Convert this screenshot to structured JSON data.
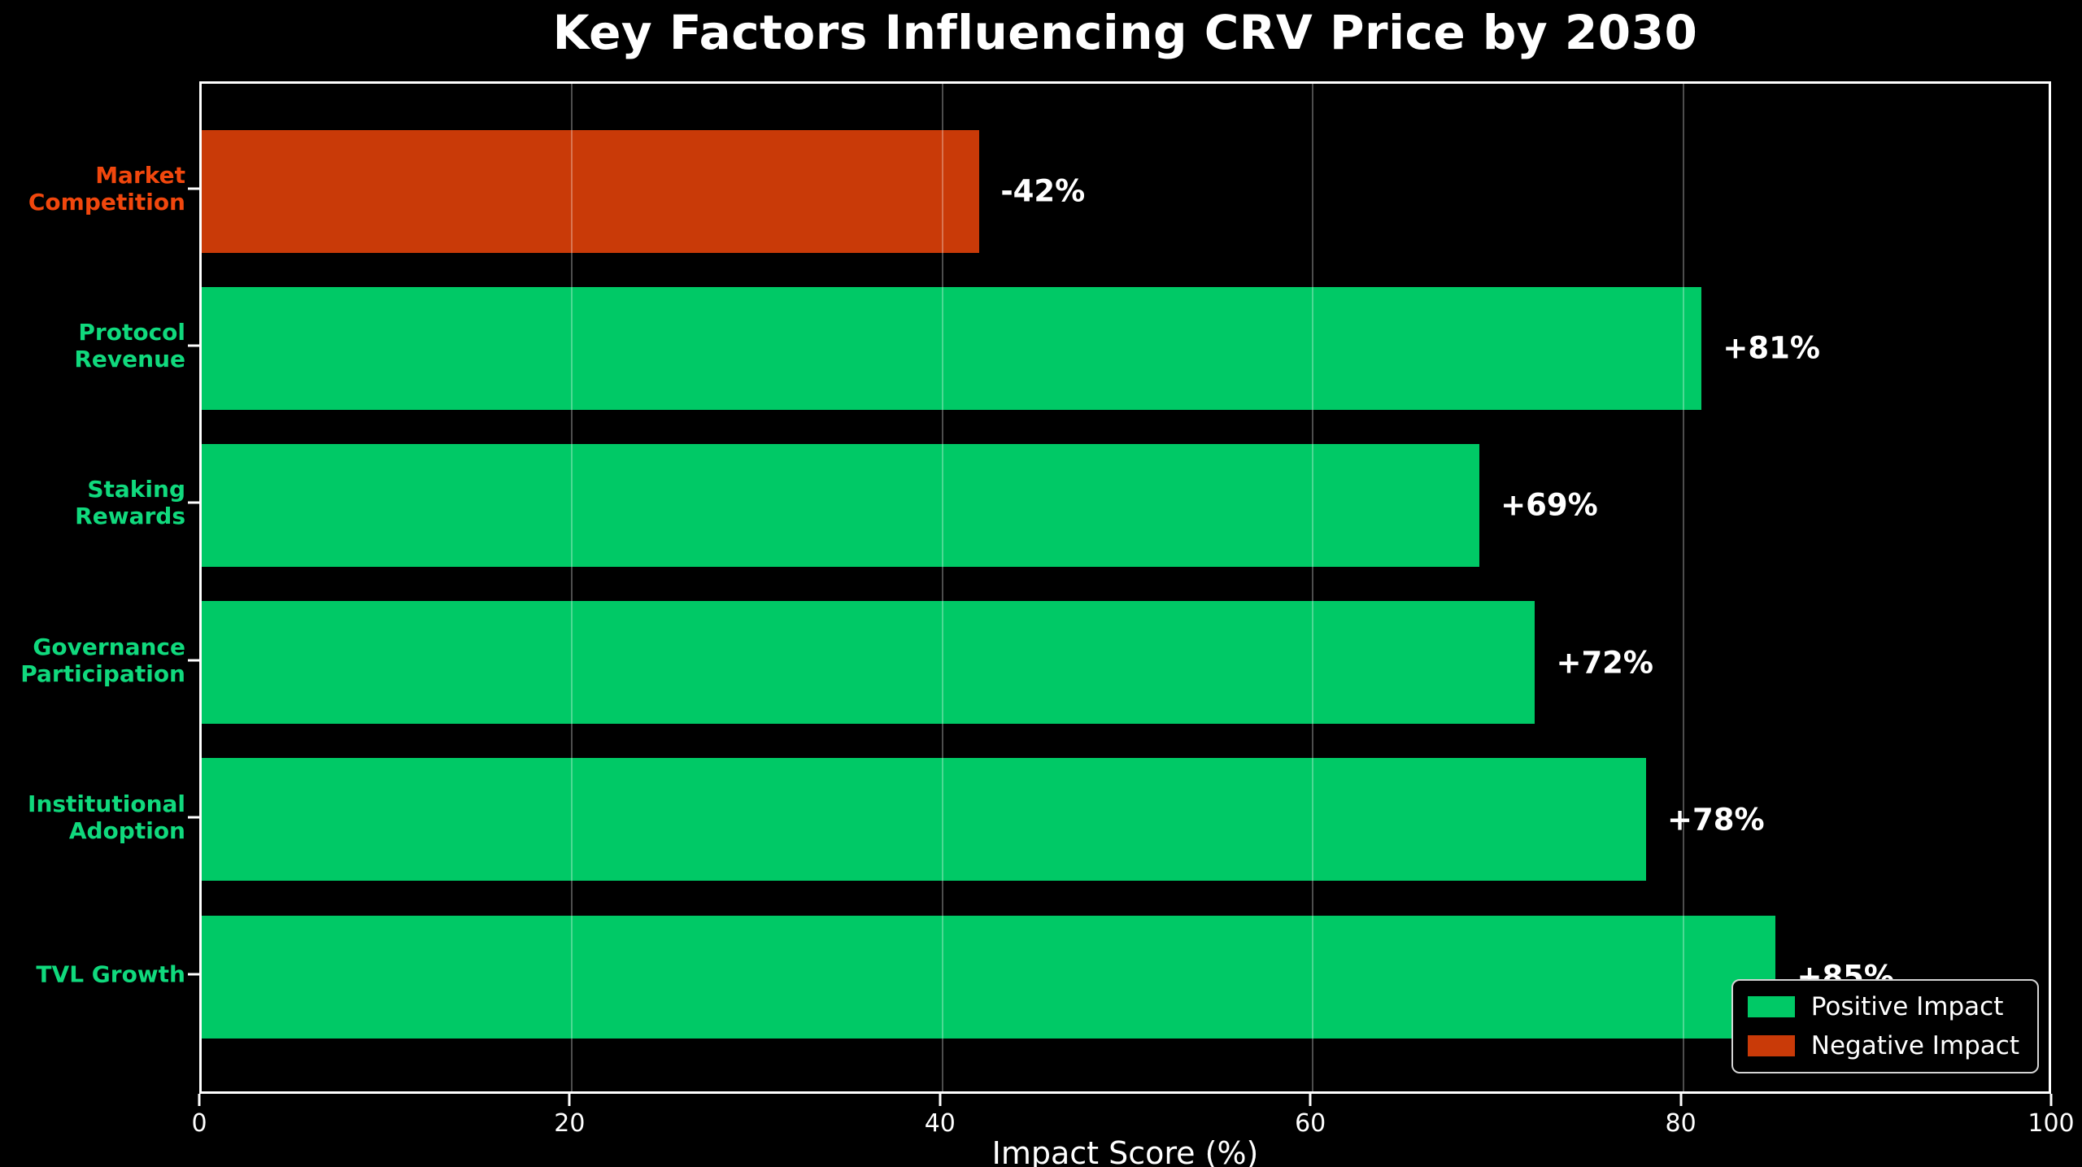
{
  "title": "Key Factors Influencing CRV Price by 2030",
  "chart_data": {
    "type": "bar",
    "orientation": "horizontal",
    "title": "Key Factors Influencing CRV Price by 2030",
    "xlabel": "Impact Score (%)",
    "ylabel": "",
    "xlim": [
      0,
      100
    ],
    "xticks": [
      "0",
      "20",
      "40",
      "60",
      "80",
      "100"
    ],
    "xtick_values": [
      0,
      20,
      40,
      60,
      80,
      100
    ],
    "grid": true,
    "background_color": "#000000",
    "rows": [
      {
        "category": "Market Competition",
        "display": "Market\nCompetition",
        "value": -42,
        "bar_length": 42,
        "bar_label": "-42%",
        "bar_color": "#c93a08",
        "label_color": "#f1470d"
      },
      {
        "category": "Protocol Revenue",
        "display": "Protocol\nRevenue",
        "value": 81,
        "bar_length": 81,
        "bar_label": "+81%",
        "bar_color": "#00c966",
        "label_color": "#10d97d"
      },
      {
        "category": "Staking Rewards",
        "display": "Staking Rewards",
        "value": 69,
        "bar_length": 69,
        "bar_label": "+69%",
        "bar_color": "#00c966",
        "label_color": "#10d97d"
      },
      {
        "category": "Governance Participation",
        "display": "Governance\nParticipation",
        "value": 72,
        "bar_length": 72,
        "bar_label": "+72%",
        "bar_color": "#00c966",
        "label_color": "#10d97d"
      },
      {
        "category": "Institutional Adoption",
        "display": "Institutional\nAdoption",
        "value": 78,
        "bar_length": 78,
        "bar_label": "+78%",
        "bar_color": "#00c966",
        "label_color": "#10d97d"
      },
      {
        "category": "TVL Growth",
        "display": "TVL Growth",
        "value": 85,
        "bar_length": 85,
        "bar_label": "+85%",
        "bar_color": "#00c966",
        "label_color": "#10d97d"
      }
    ],
    "legend": {
      "position": "lower right",
      "entries": [
        {
          "label": "Positive Impact",
          "color": "#00c966"
        },
        {
          "label": "Negative Impact",
          "color": "#c93a08"
        }
      ]
    },
    "colors": {
      "positive_bar": "#00c966",
      "negative_bar": "#c93a08",
      "positive_label": "#10d97d",
      "negative_label": "#f1470d",
      "spine": "#ffffff",
      "text": "#ffffff",
      "gridline": "rgba(255,255,255,0.30)"
    }
  }
}
